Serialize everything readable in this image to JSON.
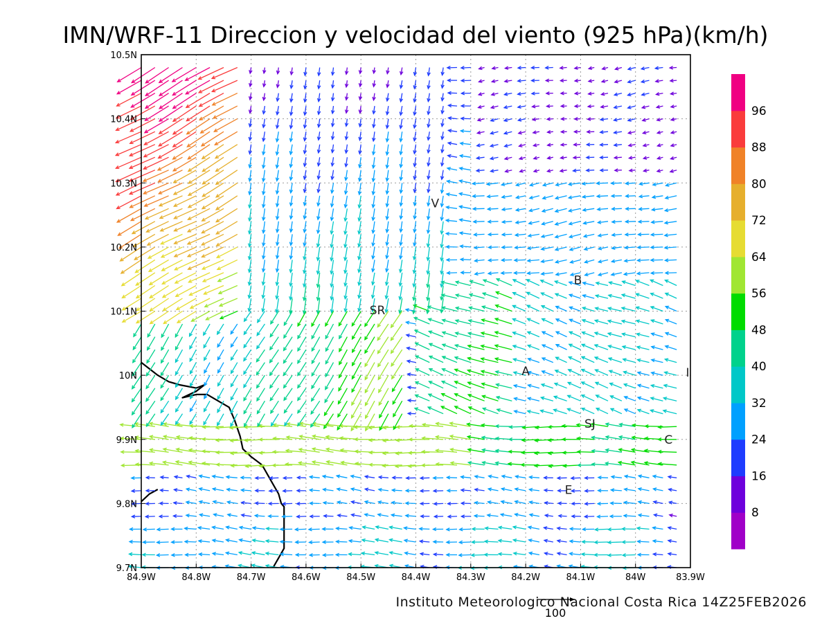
{
  "title": "IMN/WRF-11 Direccion y velocidad del viento (925 hPa)(km/h)",
  "credit": "Instituto Meteorologico Nacional Costa Rica 14Z25FEB2026",
  "reference_vector_label": "100",
  "map": {
    "lon_range": [
      -84.9,
      -83.9
    ],
    "lat_range": [
      9.7,
      10.5
    ],
    "x_tick_labels": [
      "84.9W",
      "84.8W",
      "84.7W",
      "84.6W",
      "84.5W",
      "84.4W",
      "84.3W",
      "84.2W",
      "84.1W",
      "84W",
      "83.9W"
    ],
    "y_tick_labels": [
      "9.7N",
      "9.8N",
      "9.9N",
      "10N",
      "10.1N",
      "10.2N",
      "10.3N",
      "10.4N",
      "10.5N"
    ],
    "grid": true,
    "coastline_color": "#000000",
    "places": [
      {
        "label": "V",
        "lon": -84.365,
        "lat": 10.262
      },
      {
        "label": "SR",
        "lon": -84.47,
        "lat": 10.095
      },
      {
        "label": "B",
        "lon": -84.105,
        "lat": 10.142
      },
      {
        "label": "A",
        "lon": -84.2,
        "lat": 10.0
      },
      {
        "label": "I",
        "lon": -83.905,
        "lat": 9.998
      },
      {
        "label": "SJ",
        "lon": -84.083,
        "lat": 9.918
      },
      {
        "label": "C",
        "lon": -83.94,
        "lat": 9.893
      },
      {
        "label": "E",
        "lon": -84.122,
        "lat": 9.815
      }
    ]
  },
  "colorbar": {
    "labels": [
      "8",
      "16",
      "24",
      "32",
      "40",
      "48",
      "56",
      "64",
      "72",
      "80",
      "88",
      "96"
    ],
    "colors": [
      "#a000c8",
      "#6e00dc",
      "#1e3cff",
      "#00a0ff",
      "#00c8c8",
      "#00d28c",
      "#00dc00",
      "#a0e632",
      "#e6dc32",
      "#e6af2d",
      "#f08228",
      "#fa3c3c",
      "#f00082"
    ]
  }
}
